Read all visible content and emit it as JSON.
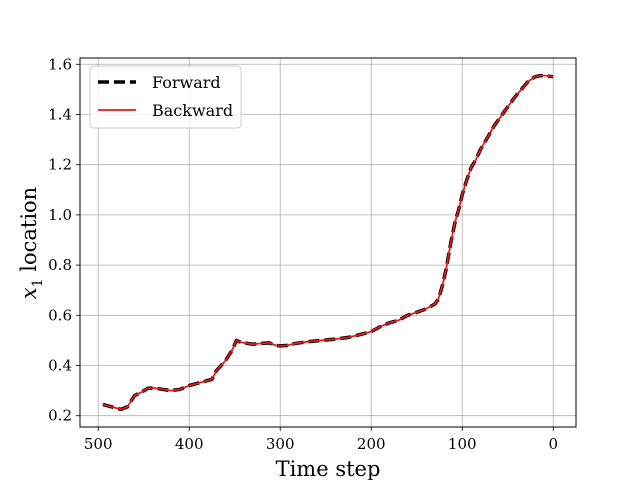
{
  "chart_data": {
    "type": "line",
    "xlabel": "Time step",
    "ylabel_var": "x",
    "ylabel_sub": "1",
    "ylabel_rest": " location",
    "xlim": [
      520,
      -25
    ],
    "ylim": [
      0.155,
      1.625
    ],
    "x_inverted": true,
    "grid": true,
    "legend_position": "upper-left",
    "xticks": [
      500,
      400,
      300,
      200,
      100,
      0
    ],
    "yticks": [
      0.2,
      0.4,
      0.6,
      0.8,
      1.0,
      1.2,
      1.4,
      1.6
    ],
    "xtick_labels": [
      "500",
      "400",
      "300",
      "200",
      "100",
      "0"
    ],
    "ytick_labels": [
      "0.2",
      "0.4",
      "0.6",
      "0.8",
      "1.0",
      "1.2",
      "1.4",
      "1.6"
    ],
    "series": [
      {
        "name": "Forward",
        "color": "#000000",
        "style": "dashed",
        "x": [
          495,
          485,
          475,
          468,
          460,
          452,
          445,
          438,
          430,
          420,
          410,
          400,
          390,
          380,
          375,
          370,
          360,
          353,
          348,
          345,
          340,
          330,
          320,
          312,
          305,
          300,
          292,
          285,
          270,
          255,
          240,
          225,
          210,
          200,
          190,
          180,
          170,
          160,
          150,
          140,
          135,
          130,
          127,
          124,
          121,
          118,
          115,
          112,
          108,
          104,
          100,
          95,
          90,
          85,
          80,
          72,
          65,
          58,
          50,
          42,
          35,
          28,
          20,
          14,
          8,
          4,
          0
        ],
        "y": [
          0.245,
          0.235,
          0.225,
          0.235,
          0.28,
          0.295,
          0.31,
          0.31,
          0.305,
          0.3,
          0.305,
          0.32,
          0.33,
          0.34,
          0.345,
          0.38,
          0.42,
          0.46,
          0.5,
          0.495,
          0.49,
          0.485,
          0.488,
          0.49,
          0.48,
          0.478,
          0.48,
          0.487,
          0.495,
          0.5,
          0.505,
          0.512,
          0.525,
          0.535,
          0.555,
          0.57,
          0.58,
          0.6,
          0.612,
          0.625,
          0.635,
          0.645,
          0.66,
          0.69,
          0.73,
          0.78,
          0.84,
          0.9,
          0.97,
          1.02,
          1.08,
          1.14,
          1.19,
          1.22,
          1.26,
          1.31,
          1.355,
          1.39,
          1.43,
          1.47,
          1.5,
          1.53,
          1.55,
          1.555,
          1.555,
          1.552,
          1.55
        ]
      },
      {
        "name": "Backward",
        "color": "#e41a1c",
        "style": "solid",
        "x": [
          495,
          485,
          475,
          468,
          460,
          452,
          445,
          438,
          430,
          420,
          410,
          400,
          390,
          380,
          375,
          370,
          360,
          353,
          348,
          345,
          340,
          330,
          320,
          312,
          305,
          300,
          292,
          285,
          270,
          255,
          240,
          225,
          210,
          200,
          190,
          180,
          170,
          160,
          150,
          140,
          135,
          130,
          127,
          124,
          121,
          118,
          115,
          112,
          108,
          104,
          100,
          95,
          90,
          85,
          80,
          72,
          65,
          58,
          50,
          42,
          35,
          28,
          20,
          14,
          8,
          4,
          0
        ],
        "y": [
          0.245,
          0.235,
          0.225,
          0.235,
          0.28,
          0.295,
          0.31,
          0.31,
          0.305,
          0.3,
          0.305,
          0.32,
          0.33,
          0.34,
          0.345,
          0.38,
          0.42,
          0.46,
          0.5,
          0.495,
          0.49,
          0.485,
          0.488,
          0.49,
          0.48,
          0.478,
          0.48,
          0.487,
          0.495,
          0.5,
          0.505,
          0.512,
          0.525,
          0.535,
          0.555,
          0.57,
          0.58,
          0.6,
          0.612,
          0.625,
          0.635,
          0.645,
          0.66,
          0.69,
          0.73,
          0.78,
          0.84,
          0.9,
          0.97,
          1.02,
          1.08,
          1.14,
          1.19,
          1.22,
          1.26,
          1.31,
          1.355,
          1.39,
          1.43,
          1.47,
          1.5,
          1.53,
          1.55,
          1.555,
          1.555,
          1.552,
          1.55
        ]
      }
    ]
  }
}
